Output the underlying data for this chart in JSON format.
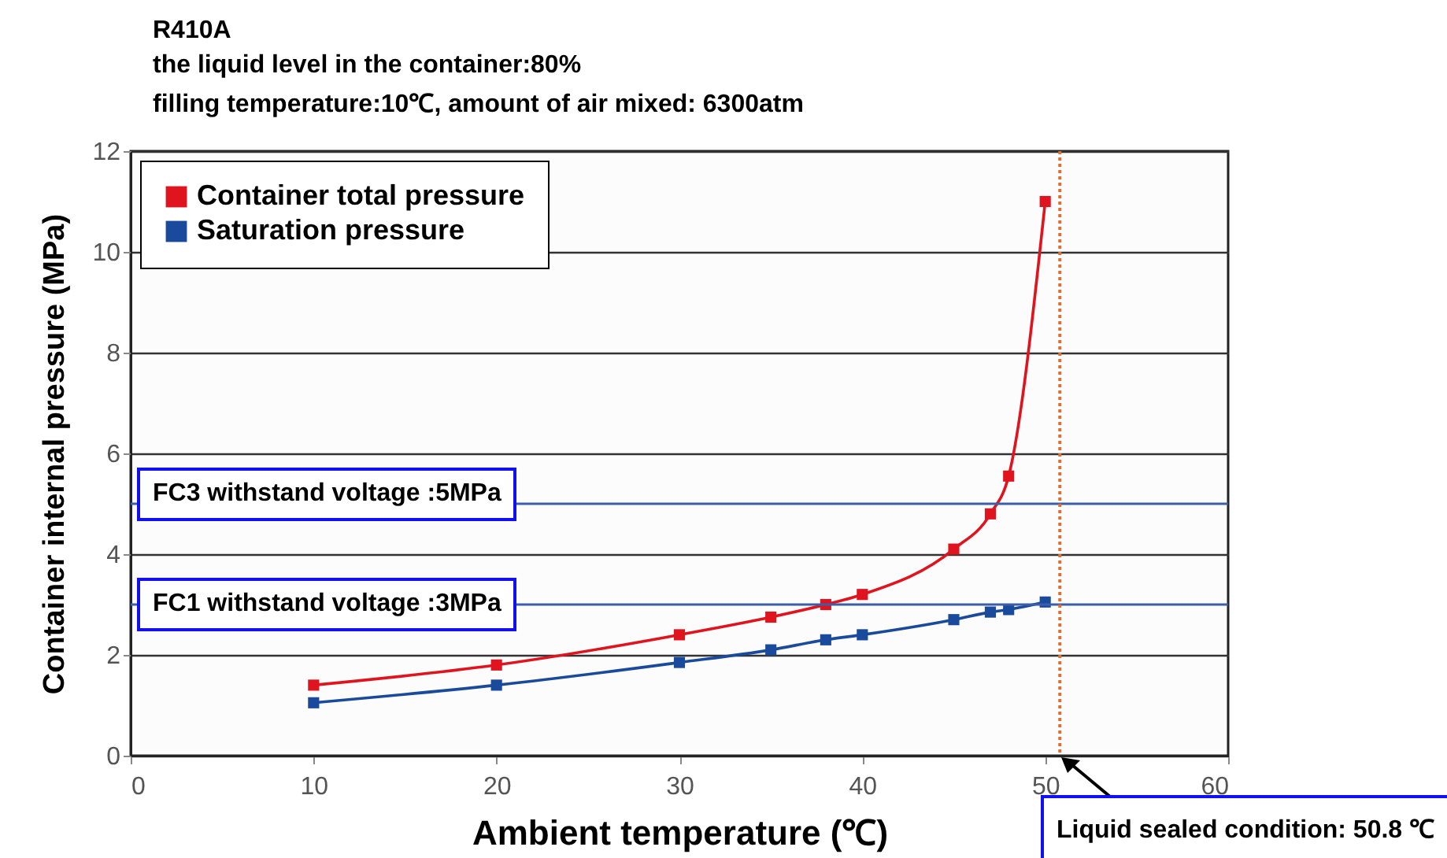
{
  "chart_data": {
    "type": "line",
    "title": "R410A",
    "subtitle": "the liquid level in the container:80%\nfilling temperature:10℃, amount of air mixed: 6300atm",
    "xlabel": "Ambient temperature (℃)",
    "ylabel": "Container internal pressure (MPa)",
    "x": [
      10,
      20,
      30,
      35,
      38,
      40,
      45,
      47,
      48,
      50
    ],
    "series": [
      {
        "name": "Container total pressure",
        "color": "#e0141e",
        "values": [
          1.4,
          1.8,
          2.4,
          2.75,
          3.0,
          3.2,
          4.1,
          4.8,
          5.55,
          11.0
        ]
      },
      {
        "name": "Saturation pressure",
        "color": "#1a4a9c",
        "values": [
          1.05,
          1.4,
          1.85,
          2.1,
          2.3,
          2.4,
          2.7,
          2.85,
          2.9,
          3.05
        ]
      }
    ],
    "xlim": [
      0,
      60
    ],
    "xticks": [
      0,
      10,
      20,
      30,
      40,
      50,
      60
    ],
    "ylim": [
      0,
      12
    ],
    "yticks": [
      0,
      2,
      4,
      6,
      8,
      10,
      12
    ],
    "grid": "y",
    "legend": "top left",
    "marker": "square",
    "line_style": "solid",
    "ref_lines": [
      {
        "axis": "y",
        "value": 5,
        "label": "FC3 withstand voltage :5MPa",
        "color": "#3a5fa8"
      },
      {
        "axis": "y",
        "value": 3,
        "label": "FC1 withstand voltage :3MPa",
        "color": "#3a5fa8"
      },
      {
        "axis": "x",
        "value": 50.8,
        "color": "#e07030",
        "line_style": "dotted"
      }
    ],
    "annotations": [
      "Liquid sealed condition: 50.8 ℃"
    ]
  }
}
